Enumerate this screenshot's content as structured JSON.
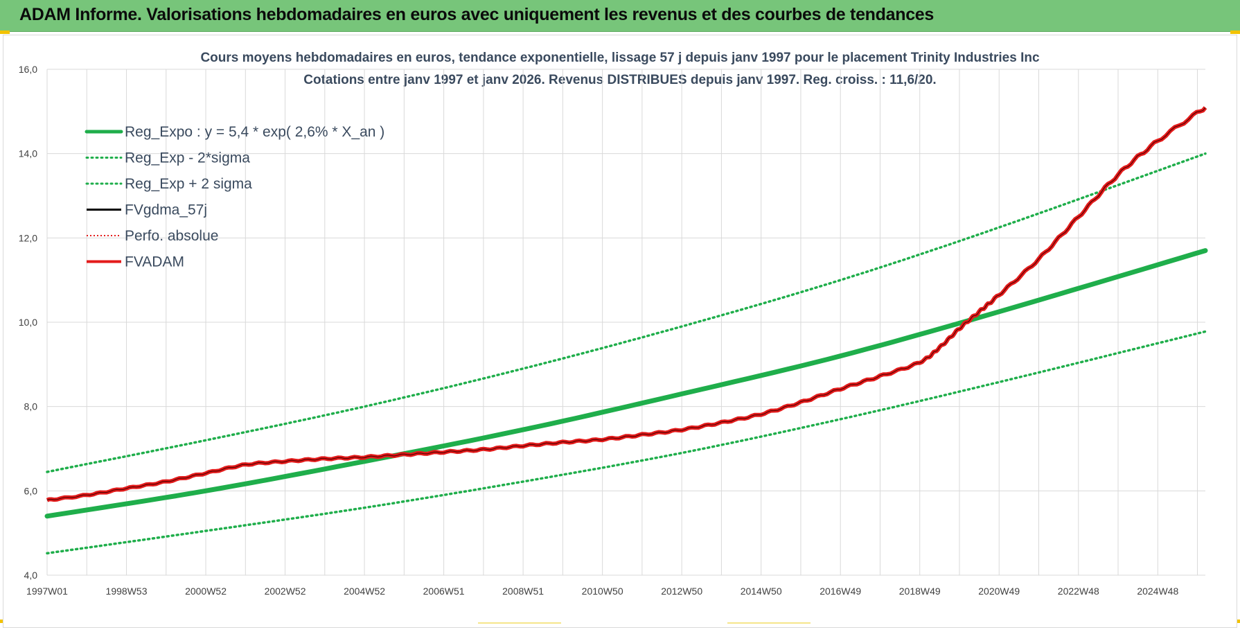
{
  "banner": {
    "title": "ADAM Informe. Valorisations hebdomadaires en euros avec uniquement les revenus et des courbes de tendances"
  },
  "colors": {
    "banner_bg": "#77c57a",
    "trend_green": "#1fae4b",
    "adam_red": "#e31b1b",
    "black": "#000000",
    "grid": "#d9d9d9"
  },
  "chart_data": {
    "type": "line",
    "title_line1": "Cours moyens hebdomadaires en euros, tendance exponentielle, lissage 57 j depuis janv 1997  pour le placement Trinity Industries Inc",
    "title_line2": "Cotations entre janv 1997 et janv 2026. Revenus DISTRIBUES depuis janv 1997. Reg. croiss. : 11,6/20.",
    "x_tick_labels": [
      "1997W01",
      "1998W53",
      "2000W52",
      "2002W52",
      "2004W52",
      "2006W51",
      "2008W51",
      "2010W50",
      "2012W50",
      "2014W50",
      "2016W49",
      "2018W49",
      "2020W49",
      "2022W48",
      "2024W48"
    ],
    "x_tick_years": [
      1997,
      1999,
      2001,
      2003,
      2005,
      2007,
      2009,
      2011,
      2013,
      2015,
      2017,
      2019,
      2021,
      2023,
      2025
    ],
    "xlim": [
      1997,
      2026.2
    ],
    "ylim": [
      4,
      16
    ],
    "y_ticks": [
      "4,0",
      "6,0",
      "8,0",
      "10,0",
      "12,0",
      "14,0",
      "16,0"
    ],
    "y_tick_values": [
      4,
      6,
      8,
      10,
      12,
      14,
      16
    ],
    "grid": true,
    "legend_position": "top-left",
    "legend": [
      {
        "label": "Reg_Expo : y = 5,4 * exp( 2,6% *  X_an )",
        "style": "solid-green"
      },
      {
        "label": "Reg_Exp - 2*sigma",
        "style": "dotted-green"
      },
      {
        "label": "Reg_Exp + 2 sigma",
        "style": "dotted-green"
      },
      {
        "label": "FVgdma_57j",
        "style": "solid-black"
      },
      {
        "label": "Perfo. absolue",
        "style": "dotted-red"
      },
      {
        "label": "FVADAM",
        "style": "solid-red"
      }
    ],
    "series": [
      {
        "name": "Reg_Expo : y = 5,4 * exp( 2,6% *  X_an )",
        "x": [
          1997,
          2001,
          2005,
          2009,
          2013,
          2017,
          2021,
          2026.2
        ],
        "y": [
          5.4,
          6.0,
          6.7,
          7.45,
          8.3,
          9.2,
          10.25,
          11.7
        ]
      },
      {
        "name": "Reg_Exp - 2*sigma",
        "x": [
          1997,
          2001,
          2005,
          2009,
          2013,
          2017,
          2021,
          2026.2
        ],
        "y": [
          4.52,
          5.05,
          5.6,
          6.22,
          6.9,
          7.7,
          8.58,
          9.78
        ]
      },
      {
        "name": "Reg_Exp + 2 sigma",
        "x": [
          1997,
          2001,
          2005,
          2009,
          2013,
          2017,
          2021,
          2026.2
        ],
        "y": [
          6.45,
          7.2,
          8.0,
          8.9,
          9.9,
          11.0,
          12.25,
          14.0
        ]
      },
      {
        "name": "FVADAM",
        "x": [
          1997,
          1998,
          1999,
          2000,
          2001,
          2002,
          2003,
          2004,
          2005,
          2006,
          2007,
          2008,
          2009,
          2010,
          2011,
          2012,
          2013,
          2014,
          2015,
          2016,
          2017,
          2018,
          2019,
          2019.5,
          2020,
          2020.5,
          2021,
          2022,
          2023,
          2024,
          2025,
          2026.2
        ],
        "y": [
          5.78,
          5.9,
          6.06,
          6.22,
          6.42,
          6.62,
          6.7,
          6.76,
          6.8,
          6.86,
          6.92,
          6.98,
          7.07,
          7.15,
          7.22,
          7.33,
          7.45,
          7.62,
          7.82,
          8.1,
          8.42,
          8.72,
          9.05,
          9.4,
          9.85,
          10.25,
          10.65,
          11.5,
          12.5,
          13.5,
          14.3,
          15.1
        ]
      }
    ]
  }
}
